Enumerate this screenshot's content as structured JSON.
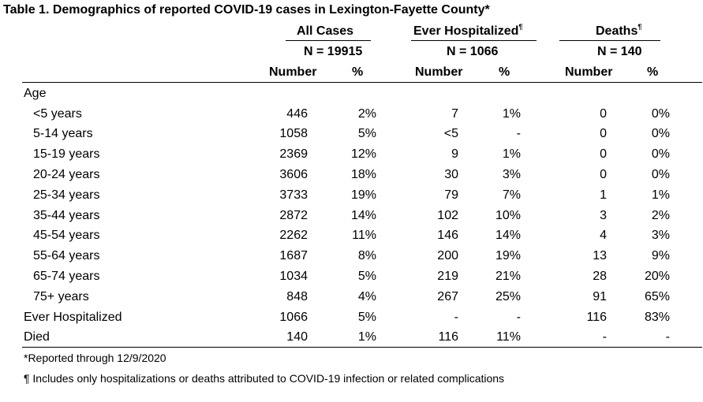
{
  "title": "Table 1. Demographics of reported COVID-19 cases in Lexington-Fayette County*",
  "groups": [
    {
      "label": "All Cases",
      "sup": "",
      "n": "N = 19915"
    },
    {
      "label": "Ever Hospitalized",
      "sup": "¶",
      "n": "N = 1066"
    },
    {
      "label": "Deaths",
      "sup": "¶",
      "n": "N = 140"
    }
  ],
  "sub_headers": {
    "number": "Number",
    "percent": "%"
  },
  "rows": [
    {
      "label": "Age",
      "section": true,
      "cells": [
        "",
        "",
        "",
        "",
        "",
        ""
      ]
    },
    {
      "label": "<5 years",
      "cells": [
        "446",
        "2%",
        "7",
        "1%",
        "0",
        "0%"
      ]
    },
    {
      "label": "5-14 years",
      "cells": [
        "1058",
        "5%",
        "<5",
        "-",
        "0",
        "0%"
      ]
    },
    {
      "label": "15-19 years",
      "cells": [
        "2369",
        "12%",
        "9",
        "1%",
        "0",
        "0%"
      ]
    },
    {
      "label": "20-24 years",
      "cells": [
        "3606",
        "18%",
        "30",
        "3%",
        "0",
        "0%"
      ]
    },
    {
      "label": "25-34 years",
      "cells": [
        "3733",
        "19%",
        "79",
        "7%",
        "1",
        "1%"
      ]
    },
    {
      "label": "35-44 years",
      "cells": [
        "2872",
        "14%",
        "102",
        "10%",
        "3",
        "2%"
      ]
    },
    {
      "label": "45-54 years",
      "cells": [
        "2262",
        "11%",
        "146",
        "14%",
        "4",
        "3%"
      ]
    },
    {
      "label": "55-64 years",
      "cells": [
        "1687",
        "8%",
        "200",
        "19%",
        "13",
        "9%"
      ]
    },
    {
      "label": "65-74 years",
      "cells": [
        "1034",
        "5%",
        "219",
        "21%",
        "28",
        "20%"
      ]
    },
    {
      "label": "75+ years",
      "cells": [
        "848",
        "4%",
        "267",
        "25%",
        "91",
        "65%"
      ]
    },
    {
      "label": "Ever Hospitalized",
      "section": true,
      "cells": [
        "1066",
        "5%",
        "-",
        "-",
        "116",
        "83%"
      ]
    },
    {
      "label": "Died",
      "section": true,
      "cells": [
        "140",
        "1%",
        "116",
        "11%",
        "-",
        "-"
      ]
    }
  ],
  "footnotes": [
    "*Reported through 12/9/2020",
    "¶ Includes only hospitalizations or deaths attributed to COVID-19 infection or related complications"
  ]
}
